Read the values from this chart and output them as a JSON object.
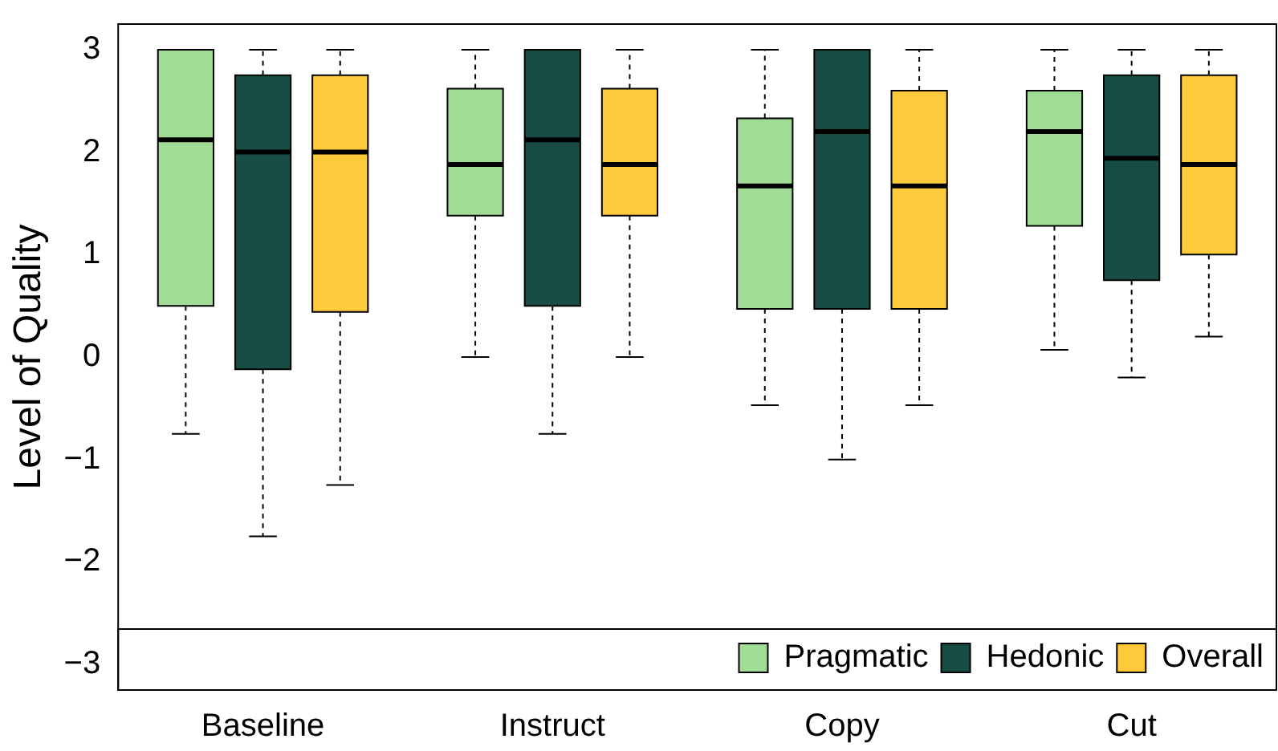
{
  "chart_data": {
    "type": "box",
    "ylabel": "Level of Quality",
    "categories": [
      "Baseline",
      "Instruct",
      "Copy",
      "Cut"
    ],
    "ylim": [
      -3.25,
      3.25
    ],
    "yticks": [
      -3,
      -2,
      -1,
      0,
      1,
      2,
      3
    ],
    "grid": false,
    "legend": "bottom right",
    "series": [
      {
        "name": "Pragmatic",
        "color": "#a1dc94",
        "boxes": [
          {
            "low": -0.75,
            "q1": 0.5,
            "median": 2.12,
            "q3": 3,
            "high": 3
          },
          {
            "low": 0,
            "q1": 1.38,
            "median": 1.88,
            "q3": 2.62,
            "high": 3
          },
          {
            "low": -0.47,
            "q1": 0.47,
            "median": 1.67,
            "q3": 2.33,
            "high": 3
          },
          {
            "low": 0.07,
            "q1": 1.28,
            "median": 2.2,
            "q3": 2.6,
            "high": 3
          }
        ]
      },
      {
        "name": "Hedonic",
        "color": "#174d45",
        "boxes": [
          {
            "low": -1.75,
            "q1": -0.12,
            "median": 2,
            "q3": 2.75,
            "high": 3
          },
          {
            "low": -0.75,
            "q1": 0.5,
            "median": 2.12,
            "q3": 3,
            "high": 3
          },
          {
            "low": -1,
            "q1": 0.47,
            "median": 2.2,
            "q3": 3,
            "high": 3
          },
          {
            "low": -0.2,
            "q1": 0.75,
            "median": 1.94,
            "q3": 2.75,
            "high": 3
          }
        ]
      },
      {
        "name": "Overall",
        "color": "#fdca3c",
        "boxes": [
          {
            "low": -1.25,
            "q1": 0.44,
            "median": 2,
            "q3": 2.75,
            "high": 3
          },
          {
            "low": 0,
            "q1": 1.38,
            "median": 1.88,
            "q3": 2.62,
            "high": 3
          },
          {
            "low": -0.47,
            "q1": 0.47,
            "median": 1.67,
            "q3": 2.6,
            "high": 3
          },
          {
            "low": 0.2,
            "q1": 1,
            "median": 1.88,
            "q3": 2.75,
            "high": 3
          }
        ]
      }
    ]
  }
}
